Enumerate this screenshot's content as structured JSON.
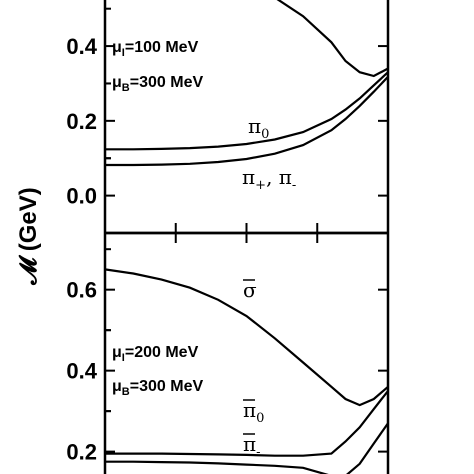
{
  "chart_data": [
    {
      "type": "line",
      "ylabel": "𝓜 (GeV)",
      "ylim": [
        -0.1,
        0.55
      ],
      "yticks": [
        0.0,
        0.2,
        0.4
      ],
      "tick_labels": [
        "0.0",
        "0.2",
        "0.4"
      ],
      "annotations": [
        {
          "sym": "μ",
          "sub": "I",
          "text": "=100 MeV"
        },
        {
          "sym": "μ",
          "sub": "B",
          "text": "=300 MeV"
        }
      ],
      "x": [
        0.0,
        0.1,
        0.2,
        0.3,
        0.4,
        0.5,
        0.6,
        0.7,
        0.8,
        0.85,
        0.9,
        0.95,
        1.0
      ],
      "series": [
        {
          "name": "",
          "values": [
            null,
            null,
            null,
            null,
            null,
            0.55,
            0.53,
            0.48,
            0.41,
            0.36,
            0.33,
            0.32,
            0.34
          ]
        },
        {
          "label_sym": "π",
          "label_sub": "0",
          "label_overline": false,
          "values": [
            0.124,
            0.124,
            0.125,
            0.127,
            0.131,
            0.138,
            0.15,
            0.17,
            0.205,
            0.23,
            0.26,
            0.295,
            0.33
          ]
        },
        {
          "label_sym": "π",
          "label_sub": "+",
          "label_extra": ", π",
          "label_sub2": "-",
          "label_overline": false,
          "values": [
            0.082,
            0.082,
            0.083,
            0.085,
            0.09,
            0.098,
            0.112,
            0.135,
            0.175,
            0.205,
            0.24,
            0.278,
            0.318
          ]
        }
      ]
    },
    {
      "type": "line",
      "ylim": [
        0.12,
        0.74
      ],
      "yticks": [
        0.2,
        0.4,
        0.6
      ],
      "tick_labels": [
        "0.2",
        "0.4",
        "0.6"
      ],
      "annotations": [
        {
          "sym": "μ",
          "sub": "I",
          "text": "=200 MeV"
        },
        {
          "sym": "μ",
          "sub": "B",
          "text": "=300 MeV"
        }
      ],
      "x": [
        0.0,
        0.1,
        0.2,
        0.3,
        0.4,
        0.5,
        0.6,
        0.7,
        0.8,
        0.85,
        0.9,
        0.95,
        1.0
      ],
      "series": [
        {
          "label_sym": "σ",
          "label_overline": true,
          "values": [
            0.65,
            0.64,
            0.625,
            0.605,
            0.575,
            0.535,
            0.48,
            0.42,
            0.36,
            0.33,
            0.315,
            0.33,
            0.36
          ]
        },
        {
          "label_sym": "π",
          "label_sub": "0",
          "label_overline": true,
          "values": [
            0.195,
            0.195,
            0.195,
            0.194,
            0.193,
            0.192,
            0.19,
            0.19,
            0.195,
            0.225,
            0.26,
            0.305,
            0.35
          ]
        },
        {
          "label_sym": "π",
          "label_sub": "-",
          "label_overline": true,
          "values": [
            0.175,
            0.175,
            0.174,
            0.173,
            0.171,
            0.168,
            0.165,
            0.16,
            0.14,
            0.14,
            0.17,
            0.22,
            0.27
          ]
        }
      ]
    }
  ]
}
